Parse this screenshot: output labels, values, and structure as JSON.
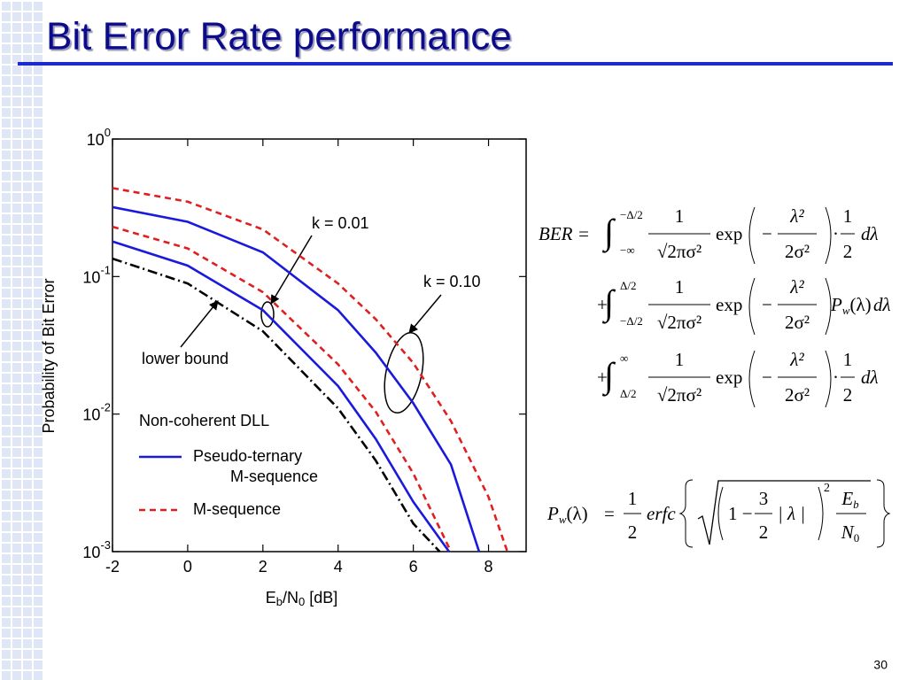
{
  "slide": {
    "title": "Bit Error Rate performance",
    "page": "30"
  },
  "chart_data": {
    "type": "line",
    "xlabel": [
      "E",
      "b",
      "/N",
      "0",
      " [dB]"
    ],
    "ylabel": "Probability of Bit Error",
    "xlim": [
      -2,
      9
    ],
    "xticks": [
      -2,
      0,
      2,
      4,
      6,
      8
    ],
    "ylim": [
      0.001,
      1
    ],
    "log_y": true,
    "yticks": [
      {
        "value": 1,
        "label": [
          "10",
          "0"
        ]
      },
      {
        "value": 0.1,
        "label": [
          "10",
          "-1"
        ]
      },
      {
        "value": 0.01,
        "label": [
          "10",
          "-2"
        ]
      },
      {
        "value": 0.001,
        "label": [
          "10",
          "-3"
        ]
      }
    ],
    "series": [
      {
        "color": "#e02020",
        "dash": "dash",
        "x": [
          -2,
          0,
          2,
          4,
          5,
          6,
          7,
          8,
          8.5
        ],
        "values": [
          0.44,
          0.35,
          0.22,
          0.089,
          0.049,
          0.0235,
          0.0089,
          0.0025,
          0.001
        ]
      },
      {
        "color": "#1a1adc",
        "dash": "solid",
        "x": [
          -2,
          0,
          2,
          4,
          5,
          6,
          7,
          7.75
        ],
        "values": [
          0.32,
          0.25,
          0.15,
          0.057,
          0.028,
          0.012,
          0.0043,
          0.001
        ]
      },
      {
        "color": "#e02020",
        "dash": "dash",
        "x": [
          -2,
          0,
          2,
          4,
          5,
          6,
          7
        ],
        "values": [
          0.23,
          0.16,
          0.077,
          0.023,
          0.0104,
          0.0037,
          0.001
        ]
      },
      {
        "color": "#1a1adc",
        "dash": "solid",
        "x": [
          -2,
          0,
          2,
          4,
          5,
          6,
          6.95
        ],
        "values": [
          0.18,
          0.12,
          0.057,
          0.016,
          0.0066,
          0.0023,
          0.001
        ]
      },
      {
        "color": "#000000",
        "dash": "dashdot",
        "x": [
          -2,
          0,
          2,
          4,
          5,
          6,
          6.7
        ],
        "values": [
          0.135,
          0.089,
          0.04,
          0.011,
          0.0046,
          0.0016,
          0.001
        ]
      }
    ],
    "legend": {
      "title": "Non-coherent DLL",
      "entries": [
        {
          "label": [
            "Pseudo-ternary",
            "M-sequence"
          ],
          "color": "#1a1adc",
          "dash": "solid"
        },
        {
          "label": [
            "M-sequence"
          ],
          "color": "#e02020",
          "dash": "dash"
        }
      ]
    },
    "annotations": [
      "k = 0.01",
      "k = 0.10",
      "lower bound"
    ]
  },
  "equations": {
    "ber_rows": [
      {
        "lead": "BER =",
        "upper": "−Δ/2",
        "lower": "−∞",
        "num": "1",
        "den": "√2πσ²",
        "exp": "exp",
        "minus": "−",
        "exp_num": "λ²",
        "exp_den": "2σ²",
        "dot": "·",
        "half_num": "1",
        "half_den": "2",
        "end": "dλ"
      },
      {
        "lead": "+",
        "upper": "Δ/2",
        "lower": "−Δ/2",
        "num": "1",
        "den": "√2πσ²",
        "exp": "exp",
        "minus": "−",
        "exp_num": "λ²",
        "exp_den": "2σ²",
        "pw": [
          "P",
          "w",
          "(λ)"
        ],
        "end": "dλ"
      },
      {
        "lead": "+",
        "upper": "∞",
        "lower": "Δ/2",
        "num": "1",
        "den": "√2πσ²",
        "exp": "exp",
        "minus": "−",
        "exp_num": "λ²",
        "exp_den": "2σ²",
        "dot": "·",
        "half_num": "1",
        "half_den": "2",
        "end": "dλ"
      }
    ],
    "pw": {
      "lhs": [
        "P",
        "w",
        "(λ)"
      ],
      "eq": "=",
      "num": "1",
      "den": "2",
      "fn": "erfc",
      "one": "1 −",
      "n3": "3",
      "d2": "2",
      "abs": "| λ |",
      "pow": "2",
      "eb": [
        "E",
        "b"
      ],
      "n0": [
        "N",
        "0"
      ]
    }
  }
}
